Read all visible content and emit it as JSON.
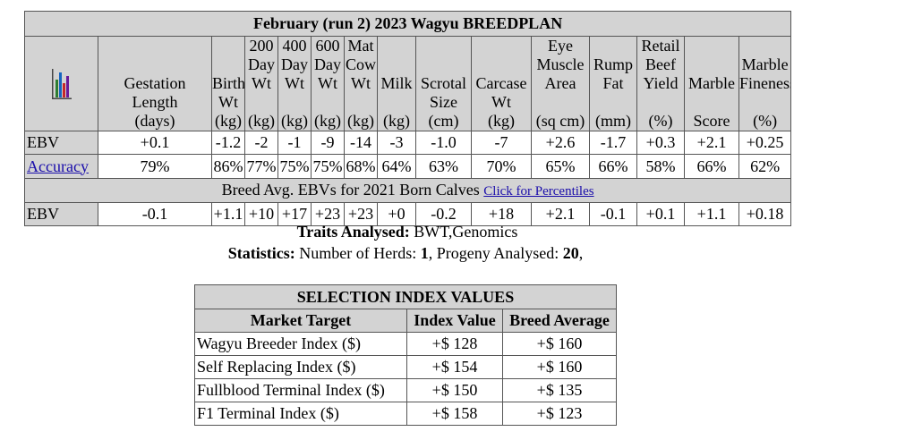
{
  "ebv_table": {
    "title": "February (run 2) 2023 Wagyu BREEDPLAN",
    "chart_icon": "bar-chart-icon",
    "columns": [
      {
        "l1": "",
        "l2": "",
        "l3": "Gestation",
        "l4": "Length",
        "l5": "(days)"
      },
      {
        "l1": "",
        "l2": "",
        "l3": "Birth",
        "l4": "Wt",
        "l5": "(kg)"
      },
      {
        "l1": "200",
        "l2": "Day",
        "l3": "Wt",
        "l4": "",
        "l5": "(kg)"
      },
      {
        "l1": "400",
        "l2": "Day",
        "l3": "Wt",
        "l4": "",
        "l5": "(kg)"
      },
      {
        "l1": "600",
        "l2": "Day",
        "l3": "Wt",
        "l4": "",
        "l5": "(kg)"
      },
      {
        "l1": "Mat",
        "l2": "Cow",
        "l3": "Wt",
        "l4": "",
        "l5": "(kg)"
      },
      {
        "l1": "",
        "l2": "",
        "l3": "Milk",
        "l4": "",
        "l5": "(kg)"
      },
      {
        "l1": "",
        "l2": "",
        "l3": "Scrotal",
        "l4": "Size",
        "l5": "(cm)"
      },
      {
        "l1": "",
        "l2": "",
        "l3": "Carcase",
        "l4": "Wt",
        "l5": "(kg)"
      },
      {
        "l1": "Eye",
        "l2": "Muscle",
        "l3": "Area",
        "l4": "",
        "l5": "(sq cm)"
      },
      {
        "l1": "",
        "l2": "Rump",
        "l3": "Fat",
        "l4": "",
        "l5": "(mm)"
      },
      {
        "l1": "Retail",
        "l2": "Beef",
        "l3": "Yield",
        "l4": "",
        "l5": "(%)"
      },
      {
        "l1": "",
        "l2": "",
        "l3": "Marble",
        "l4": "",
        "l5": "Score"
      },
      {
        "l1": "",
        "l2": "Marble",
        "l3": "Fineness",
        "l4": "",
        "l5": "(%)"
      }
    ],
    "ebv_row": {
      "label": "EBV",
      "values": [
        "+0.1",
        "-1.2",
        "-2",
        "-1",
        "-9",
        "-14",
        "-3",
        "-1.0",
        "-7",
        "+2.6",
        "-1.7",
        "+0.3",
        "+2.1",
        "+0.25"
      ]
    },
    "accuracy_row": {
      "label": "Accuracy",
      "values": [
        "79%",
        "86%",
        "77%",
        "75%",
        "75%",
        "68%",
        "64%",
        "63%",
        "70%",
        "65%",
        "66%",
        "58%",
        "66%",
        "62%"
      ]
    },
    "breed_avg_title": "Breed Avg. EBVs for 2021 Born Calves",
    "percentiles_link": "Click for Percentiles",
    "breed_row": {
      "label": "EBV",
      "values": [
        "-0.1",
        "+1.1",
        "+10",
        "+17",
        "+23",
        "+23",
        "+0",
        "-0.2",
        "+18",
        "+2.1",
        "-0.1",
        "+0.1",
        "+1.1",
        "+0.18"
      ]
    }
  },
  "traits": {
    "label": "Traits Analysed:",
    "value": " BWT,Genomics"
  },
  "statistics": {
    "label": "Statistics:",
    "herds_label": " Number of Herds: ",
    "herds": "1",
    "progeny_label": ", Progeny Analysed: ",
    "progeny": "20",
    "tail": ","
  },
  "selection_index": {
    "title": "SELECTION INDEX VALUES",
    "headers": [
      "Market Target",
      "Index Value",
      "Breed Average"
    ],
    "rows": [
      {
        "name": "Wagyu Breeder Index ($)",
        "value": "+$ 128",
        "avg": "+$ 160"
      },
      {
        "name": "Self Replacing Index ($)",
        "value": "+$ 154",
        "avg": "+$ 160"
      },
      {
        "name": "Fullblood Terminal Index ($)",
        "value": "+$ 150",
        "avg": "+$ 135"
      },
      {
        "name": "F1 Terminal Index ($)",
        "value": "+$ 158",
        "avg": "+$ 123"
      }
    ]
  }
}
